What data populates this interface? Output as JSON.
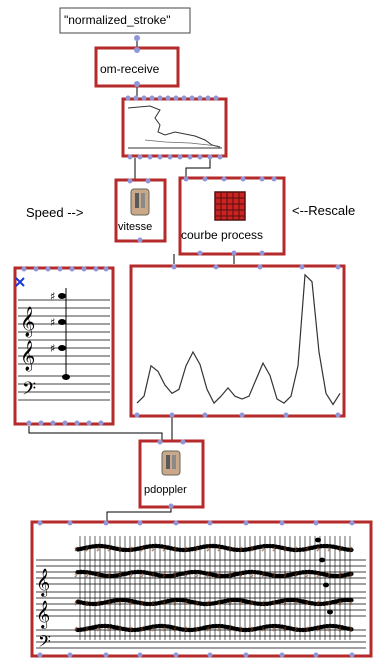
{
  "patch": {
    "message_text": "\"normalized_stroke\"",
    "om_receive_label": "om-receive",
    "vitesse_label": "vitesse",
    "courbe_label": "courbe process",
    "pdoppler_label": "pdoppler",
    "speed_comment": "Speed -->",
    "rescale_comment": "<--Rescale"
  },
  "colors": {
    "box_border": "#b52a2a",
    "inlet": "#8f97d8",
    "wire": "#000000",
    "curve": "#333333",
    "icon_red": "#cc2222",
    "marker": "#1a3bd6"
  },
  "curve_data": {
    "type": "line",
    "values": [
      0.05,
      0.1,
      0.32,
      0.28,
      0.18,
      0.12,
      0.15,
      0.32,
      0.42,
      0.33,
      0.15,
      0.05,
      0.1,
      0.16,
      0.1,
      0.08,
      0.1,
      0.22,
      0.34,
      0.25,
      0.08,
      0.05,
      0.1,
      0.32,
      0.98,
      0.93,
      0.42,
      0.12,
      0.04,
      0.12
    ]
  },
  "icons": [
    "hand-icon",
    "grid-icon",
    "treble-clef-icon",
    "bass-clef-icon"
  ]
}
